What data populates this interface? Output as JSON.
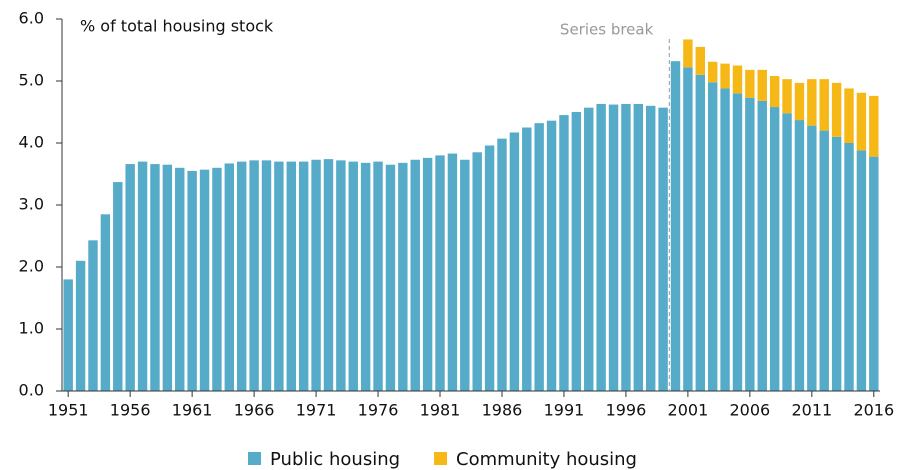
{
  "chart_data": {
    "type": "stacked_bar",
    "ylabel": "% of total housing stock",
    "annotation": "Series break",
    "categories": [
      "1951",
      null,
      null,
      null,
      null,
      "1956",
      null,
      null,
      null,
      null,
      "1961",
      null,
      null,
      null,
      null,
      "1966",
      null,
      null,
      null,
      null,
      "1971",
      null,
      null,
      null,
      null,
      "1976",
      null,
      null,
      null,
      null,
      "1981",
      null,
      null,
      null,
      null,
      "1986",
      null,
      null,
      null,
      null,
      "1991",
      null,
      null,
      null,
      null,
      "1996",
      null,
      null,
      null,
      null,
      "2001",
      null,
      null,
      null,
      null,
      "2006",
      null,
      null,
      null,
      null,
      "2011",
      null,
      null,
      null,
      null,
      "2016"
    ],
    "series": [
      {
        "name": "Public housing",
        "color": "#56abc9",
        "values": [
          1.8,
          2.1,
          2.43,
          2.85,
          3.37,
          3.66,
          3.7,
          3.66,
          3.65,
          3.6,
          3.55,
          3.57,
          3.6,
          3.67,
          3.7,
          3.72,
          3.72,
          3.7,
          3.7,
          3.7,
          3.73,
          3.74,
          3.72,
          3.7,
          3.68,
          3.7,
          3.65,
          3.68,
          3.73,
          3.76,
          3.8,
          3.83,
          3.73,
          3.85,
          3.96,
          4.07,
          4.17,
          4.25,
          4.32,
          4.36,
          4.45,
          4.5,
          4.57,
          4.63,
          4.62,
          4.63,
          4.63,
          4.6,
          4.57,
          5.32,
          5.22,
          5.1,
          4.98,
          4.88,
          4.8,
          4.73,
          4.68,
          4.58,
          4.48,
          4.37,
          4.28,
          4.2,
          4.1,
          4.0,
          3.88,
          3.78
        ]
      },
      {
        "name": "Community housing",
        "color": "#f5b817",
        "values": [
          null,
          null,
          null,
          null,
          null,
          null,
          null,
          null,
          null,
          null,
          null,
          null,
          null,
          null,
          null,
          null,
          null,
          null,
          null,
          null,
          null,
          null,
          null,
          null,
          null,
          null,
          null,
          null,
          null,
          null,
          null,
          null,
          null,
          null,
          null,
          null,
          null,
          null,
          null,
          null,
          null,
          null,
          null,
          null,
          null,
          null,
          null,
          null,
          null,
          null,
          0.45,
          0.45,
          0.33,
          0.4,
          0.45,
          0.45,
          0.5,
          0.5,
          0.55,
          0.6,
          0.75,
          0.83,
          0.87,
          0.88,
          0.93,
          0.98
        ]
      }
    ],
    "ylim": [
      0,
      6
    ],
    "yticks": [
      {
        "value": 0,
        "label": "0.0"
      },
      {
        "value": 1,
        "label": "1.0"
      },
      {
        "value": 2,
        "label": "2.0"
      },
      {
        "value": 3,
        "label": "3.0"
      },
      {
        "value": 4,
        "label": "4.0"
      },
      {
        "value": 5,
        "label": "5.0"
      },
      {
        "value": 6,
        "label": "6.0"
      }
    ],
    "legend": "bottom"
  }
}
